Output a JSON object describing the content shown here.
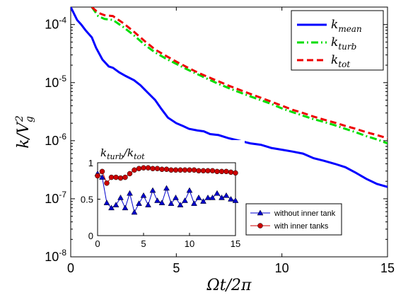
{
  "chart_data": [
    {
      "type": "line",
      "ylabel": "k/V_g^2",
      "xlabel": "Ωt/2π",
      "xlim": [
        0,
        15
      ],
      "ylim": [
        1e-08,
        0.0002
      ],
      "yscale": "log",
      "xticks": [
        "0",
        "5",
        "10",
        "15"
      ],
      "yticks": [
        {
          "base": "10",
          "exp": "-8"
        },
        {
          "base": "10",
          "exp": "-7"
        },
        {
          "base": "10",
          "exp": "-6"
        },
        {
          "base": "10",
          "exp": "-5"
        },
        {
          "base": "10",
          "exp": "-4"
        }
      ],
      "legend_position": "top-right",
      "series": [
        {
          "name": "k_mean",
          "label_base": "k",
          "label_sub": "mean",
          "color": "#0000ff",
          "style": "solid",
          "x": [
            0,
            0.3,
            0.5,
            0.7,
            1.0,
            1.2,
            1.5,
            1.8,
            2.0,
            2.3,
            2.6,
            3.0,
            3.3,
            3.6,
            4.0,
            4.3,
            4.6,
            5.0,
            5.3,
            5.6,
            6.0,
            6.3,
            6.6,
            7.0,
            7.5,
            8.0,
            8.5,
            9.0,
            9.5,
            10.0,
            10.5,
            11.0,
            11.5,
            12.0,
            12.5,
            13.0,
            13.5,
            14.0,
            14.5,
            15.0
          ],
          "y": [
            0.0002,
            0.00012,
            0.0001,
            8e-05,
            6e-05,
            4e-05,
            2.5e-05,
            1.9e-05,
            1.8e-05,
            1.5e-05,
            1.3e-05,
            1.1e-05,
            9e-06,
            7e-06,
            5e-06,
            3.5e-06,
            2.5e-06,
            2e-06,
            1.8e-06,
            1.6e-06,
            1.5e-06,
            1.45e-06,
            1.3e-06,
            1.25e-06,
            1.1e-06,
            1e-06,
            9e-07,
            8.5e-07,
            7.5e-07,
            7e-07,
            6.5e-07,
            6e-07,
            5e-07,
            4.5e-07,
            4e-07,
            3.5e-07,
            2.8e-07,
            2.2e-07,
            1.8e-07,
            1.6e-07
          ]
        },
        {
          "name": "k_turb",
          "label_base": "k",
          "label_sub": "turb",
          "color": "#00dd00",
          "style": "dashdot",
          "x": [
            1.0,
            1.3,
            1.6,
            2.0,
            2.5,
            3.0,
            3.5,
            4.0,
            4.5,
            5.0,
            5.5,
            6.0,
            6.5,
            7.0,
            7.5,
            8.0,
            8.5,
            9.0,
            9.5,
            10.0,
            10.5,
            11.0,
            11.5,
            12.0,
            12.5,
            13.0,
            13.5,
            14.0,
            14.5,
            15.0
          ],
          "y": [
            0.0002,
            0.00014,
            0.000125,
            0.00012,
            9e-05,
            6.5e-05,
            4.5e-05,
            3.3e-05,
            2.6e-05,
            2.1e-05,
            1.7e-05,
            1.4e-05,
            1.15e-05,
            9.5e-06,
            8e-06,
            6.8e-06,
            5.8e-06,
            5e-06,
            4.3e-06,
            3.6e-06,
            3.1e-06,
            2.7e-06,
            2.35e-06,
            2.1e-06,
            1.85e-06,
            1.6e-06,
            1.4e-06,
            1.2e-06,
            1.05e-06,
            9e-07
          ]
        },
        {
          "name": "k_tot",
          "label_base": "k",
          "label_sub": "tot",
          "color": "#ee0000",
          "style": "dashed",
          "x": [
            1.0,
            1.3,
            1.6,
            2.0,
            2.5,
            3.0,
            3.5,
            4.0,
            4.5,
            5.0,
            5.5,
            6.0,
            6.5,
            7.0,
            7.5,
            8.0,
            8.5,
            9.0,
            9.5,
            10.0,
            10.5,
            11.0,
            11.5,
            12.0,
            12.5,
            13.0,
            13.5,
            14.0,
            14.5,
            15.0
          ],
          "y": [
            0.0002,
            0.00016,
            0.000145,
            0.00014,
            0.000105,
            7.5e-05,
            5.2e-05,
            3.7e-05,
            2.9e-05,
            2.3e-05,
            1.85e-05,
            1.5e-05,
            1.25e-05,
            1.05e-05,
            8.8e-06,
            7.5e-06,
            6.4e-06,
            5.5e-06,
            4.7e-06,
            4e-06,
            3.4e-06,
            3e-06,
            2.6e-06,
            2.3e-06,
            2.05e-06,
            1.8e-06,
            1.6e-06,
            1.4e-06,
            1.25e-06,
            1.1e-06
          ]
        }
      ]
    },
    {
      "type": "line",
      "title": "k_turb/k_tot",
      "title_parts": {
        "a": "k",
        "a_sub": "turb",
        "slash": "/",
        "b": "k",
        "b_sub": "tot"
      },
      "xlim": [
        0,
        15
      ],
      "ylim": [
        0,
        1
      ],
      "xticks": [
        "0",
        "5",
        "10",
        "15"
      ],
      "yticks": [
        "0",
        "0.5",
        "1"
      ],
      "legend_position": "bottom-right",
      "series": [
        {
          "name": "without inner tank",
          "color": "#0000cc",
          "marker": "triangle",
          "x": [
            0,
            0.5,
            1,
            1.5,
            2,
            2.5,
            3,
            3.5,
            4,
            4.5,
            5,
            5.5,
            6,
            6.5,
            7,
            7.5,
            8,
            8.5,
            9,
            9.5,
            10,
            10.5,
            11,
            11.5,
            12,
            12.5,
            13,
            13.5,
            14,
            14.5,
            15
          ],
          "y": [
            0.85,
            0.8,
            0.45,
            0.38,
            0.42,
            0.52,
            0.38,
            0.58,
            0.32,
            0.44,
            0.55,
            0.42,
            0.62,
            0.48,
            0.45,
            0.65,
            0.44,
            0.52,
            0.42,
            0.48,
            0.62,
            0.44,
            0.52,
            0.47,
            0.52,
            0.52,
            0.58,
            0.52,
            0.55,
            0.5,
            0.48
          ]
        },
        {
          "name": "with inner tanks",
          "color": "#cc0000",
          "marker": "circle",
          "x": [
            0,
            0.5,
            1,
            1.5,
            2,
            2.5,
            3,
            3.5,
            4,
            4.5,
            5,
            5.5,
            6,
            6.5,
            7,
            7.5,
            8,
            8.5,
            9,
            9.5,
            10,
            10.5,
            11,
            11.5,
            12,
            12.5,
            13,
            13.5,
            14,
            14.5,
            15
          ],
          "y": [
            0.82,
            0.88,
            0.72,
            0.8,
            0.8,
            0.79,
            0.8,
            0.85,
            0.9,
            0.92,
            0.93,
            0.93,
            0.92,
            0.92,
            0.91,
            0.91,
            0.9,
            0.9,
            0.9,
            0.9,
            0.9,
            0.9,
            0.89,
            0.89,
            0.89,
            0.89,
            0.88,
            0.88,
            0.88,
            0.87,
            0.86
          ]
        }
      ]
    }
  ]
}
